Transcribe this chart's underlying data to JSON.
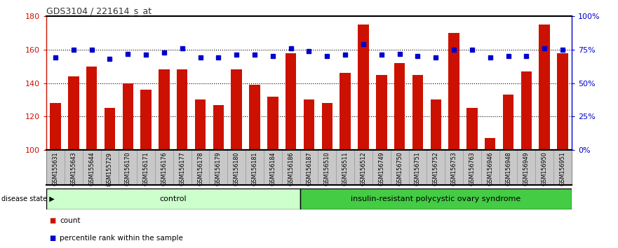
{
  "title": "GDS3104 / 221614_s_at",
  "samples": [
    "GSM155631",
    "GSM155643",
    "GSM155644",
    "GSM155729",
    "GSM156170",
    "GSM156171",
    "GSM156176",
    "GSM156177",
    "GSM156178",
    "GSM156179",
    "GSM156180",
    "GSM156181",
    "GSM156184",
    "GSM156186",
    "GSM156187",
    "GSM156510",
    "GSM156511",
    "GSM156512",
    "GSM156749",
    "GSM156750",
    "GSM156751",
    "GSM156752",
    "GSM156753",
    "GSM156763",
    "GSM156946",
    "GSM156948",
    "GSM156949",
    "GSM156950",
    "GSM156951"
  ],
  "counts": [
    128,
    144,
    150,
    125,
    140,
    136,
    148,
    148,
    130,
    127,
    148,
    139,
    132,
    158,
    130,
    128,
    146,
    175,
    145,
    152,
    145,
    130,
    170,
    125,
    107,
    133,
    147,
    175,
    158
  ],
  "percentile": [
    69,
    75,
    75,
    68,
    72,
    71,
    73,
    76,
    69,
    69,
    71,
    71,
    70,
    76,
    74,
    70,
    71,
    79,
    71,
    72,
    70,
    69,
    75,
    75,
    69,
    70,
    70,
    76,
    75
  ],
  "n_control": 14,
  "ylim_left": [
    100,
    180
  ],
  "ylim_right": [
    0,
    100
  ],
  "yticks_left": [
    100,
    120,
    140,
    160,
    180
  ],
  "yticks_right": [
    0,
    25,
    50,
    75,
    100
  ],
  "ytick_labels_right": [
    "0%",
    "25%",
    "50%",
    "75%",
    "100%"
  ],
  "bar_color": "#cc1100",
  "dot_color": "#0000cc",
  "control_color": "#ccffcc",
  "disease_color": "#44cc44",
  "xtick_bg_color": "#c8c8c8",
  "xtick_border_color": "#888888",
  "left_axis_color": "#cc1100",
  "right_axis_color": "#0000cc",
  "legend_count_label": "count",
  "legend_percentile_label": "percentile rank within the sample",
  "group_label_control": "control",
  "group_label_disease": "insulin-resistant polycystic ovary syndrome",
  "disease_state_label": "disease state"
}
